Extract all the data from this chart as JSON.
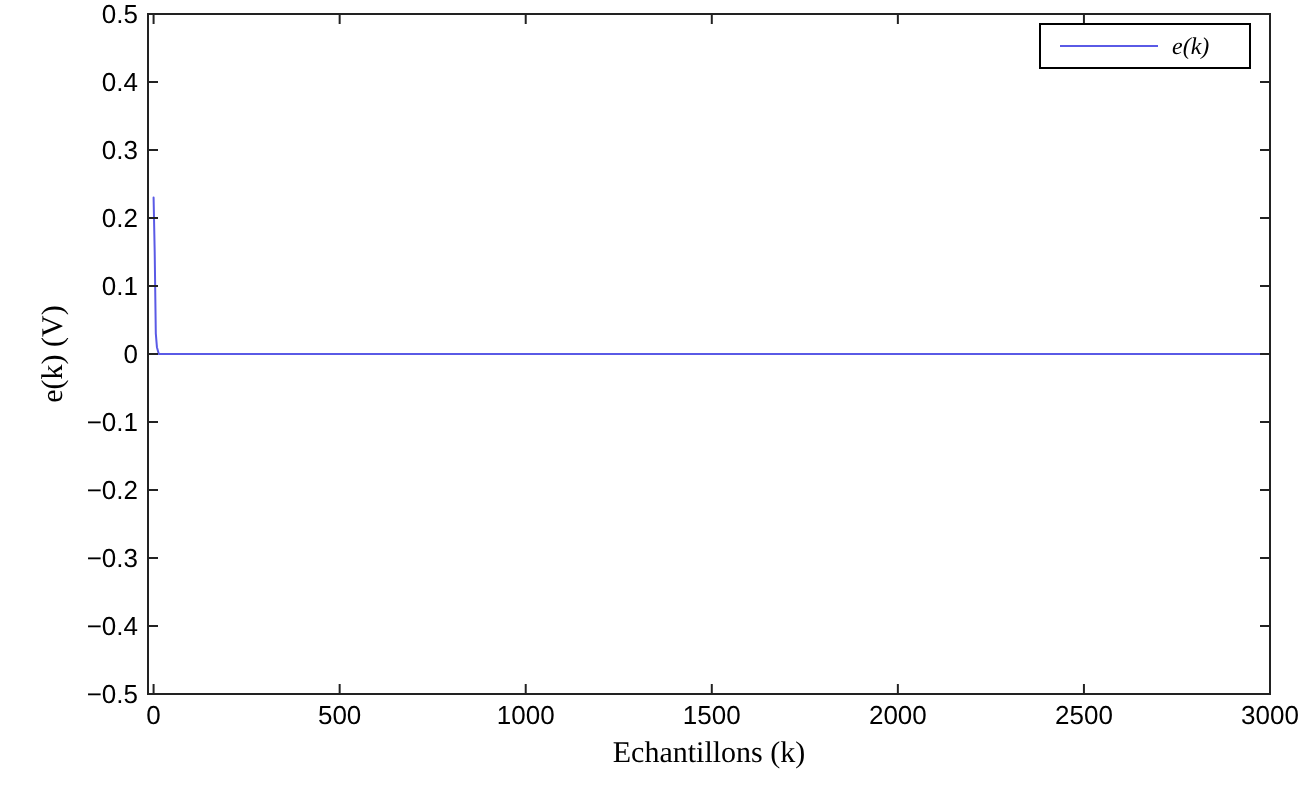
{
  "chart_data": {
    "type": "line",
    "xlabel": "Echantillons (k)",
    "ylabel": "e(k) (V)",
    "x": [
      0,
      3,
      6,
      9,
      14,
      100,
      500,
      1000,
      1500,
      2000,
      2500,
      3000
    ],
    "series": [
      {
        "name": "e(k)",
        "color": "#5a5ae6",
        "values": [
          0.23,
          0.15,
          0.03,
          0.01,
          0,
          0,
          0,
          0,
          0,
          0,
          0,
          0
        ]
      }
    ],
    "xlim": [
      -15,
      3000
    ],
    "xticks": [
      0,
      500,
      1000,
      1500,
      2000,
      2500,
      3000
    ],
    "ylim": [
      -0.5,
      0.5
    ],
    "yticks": [
      {
        "value": -0.5,
        "label": "−0.5"
      },
      {
        "value": -0.4,
        "label": "−0.4"
      },
      {
        "value": -0.3,
        "label": "−0.3"
      },
      {
        "value": -0.2,
        "label": "−0.2"
      },
      {
        "value": -0.1,
        "label": "−0.1"
      },
      0,
      0.1,
      0.2,
      0.3,
      0.4,
      0.5
    ],
    "grid": false,
    "legend": "top right",
    "marker": "none",
    "line_style": "solid"
  }
}
